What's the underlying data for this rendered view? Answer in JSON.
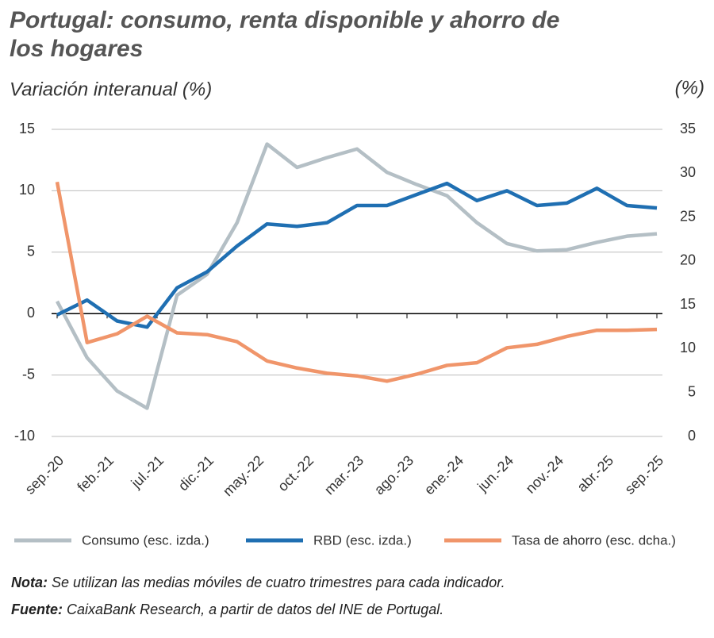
{
  "chart_data": {
    "type": "line",
    "title": "Portugal: consumo, renta disponible y ahorro de los hogares",
    "subtitle": "Variación interanual (%)",
    "y2_label": "(%)",
    "x": [
      "2020-09",
      "2020-12",
      "2021-03",
      "2021-06",
      "2021-09",
      "2021-12",
      "2022-03",
      "2022-06",
      "2022-09",
      "2022-12",
      "2023-03",
      "2023-06",
      "2023-09",
      "2023-12",
      "2024-03",
      "2024-06",
      "2024-09",
      "2024-12",
      "2025-03",
      "2025-06",
      "2025-09"
    ],
    "xlim": [
      "2020-09",
      "2025-09"
    ],
    "xticks": [
      {
        "value": "2020-09",
        "label": "sep.-20"
      },
      {
        "value": "2021-02",
        "label": "feb.-21"
      },
      {
        "value": "2021-07",
        "label": "jul.-21"
      },
      {
        "value": "2021-12",
        "label": "dic.-21"
      },
      {
        "value": "2022-05",
        "label": "may.-22"
      },
      {
        "value": "2022-10",
        "label": "oct.-22"
      },
      {
        "value": "2023-03",
        "label": "mar.-23"
      },
      {
        "value": "2023-08",
        "label": "ago.-23"
      },
      {
        "value": "2024-01",
        "label": "ene.-24"
      },
      {
        "value": "2024-06",
        "label": "jun.-24"
      },
      {
        "value": "2024-11",
        "label": "nov.-24"
      },
      {
        "value": "2025-04",
        "label": "abr.-25"
      },
      {
        "value": "2025-09",
        "label": "sep.-25"
      }
    ],
    "ylim": [
      -10,
      15
    ],
    "yticks": [
      -10,
      -5,
      0,
      5,
      10,
      15
    ],
    "y2lim": [
      0,
      35
    ],
    "y2ticks": [
      0,
      5,
      10,
      15,
      20,
      25,
      30,
      35
    ],
    "grid": true,
    "series": [
      {
        "name": "Consumo (esc. izda.)",
        "color": "#b4bfc5",
        "values": [
          1.0,
          -3.6,
          -6.3,
          -7.7,
          1.5,
          3.2,
          7.4,
          13.8,
          11.9,
          12.7,
          13.4,
          11.5,
          10.5,
          9.6,
          7.4,
          5.7,
          5.1,
          5.2,
          5.8,
          6.3,
          6.5
        ]
      },
      {
        "name": "RBD (esc. izda.)",
        "color": "#1f6fb2",
        "values": [
          -0.1,
          1.1,
          -0.6,
          -1.1,
          2.1,
          3.4,
          5.5,
          7.3,
          7.1,
          7.4,
          8.8,
          8.8,
          9.7,
          10.6,
          9.2,
          10.0,
          8.8,
          9.0,
          10.2,
          8.8,
          8.6
        ]
      },
      {
        "name": "Tasa de ahorro (esc. dcha.)",
        "color": "#f0956a",
        "axis": "y2",
        "values": [
          29.0,
          10.7,
          11.7,
          13.7,
          11.8,
          11.6,
          10.8,
          8.6,
          7.8,
          7.2,
          6.9,
          6.3,
          7.1,
          8.1,
          8.4,
          10.1,
          10.5,
          11.4,
          12.1,
          12.1,
          12.2
        ]
      }
    ],
    "notes": [
      {
        "label": "Nota:",
        "text": "Se utilizan las medias móviles de cuatro trimestres para cada indicador."
      },
      {
        "label": "Fuente:",
        "text": "CaixaBank Research, a partir de datos del INE de Portugal."
      }
    ]
  }
}
